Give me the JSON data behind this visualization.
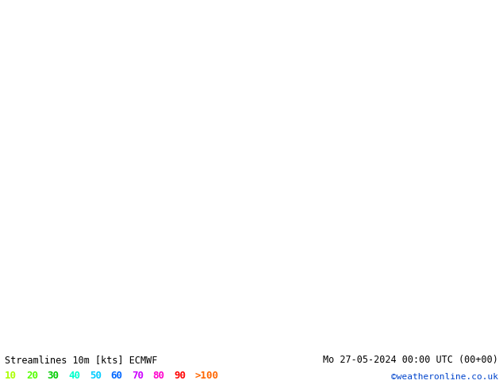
{
  "title_left": "Streamlines 10m [kts] ECMWF",
  "title_right": "Mo 27-05-2024 00:00 UTC (00+00)",
  "credit": "©weatheronline.co.uk",
  "legend_values": [
    "10",
    "20",
    "30",
    "40",
    "50",
    "60",
    "70",
    "80",
    "90",
    ">100"
  ],
  "legend_colors": [
    "#aaff00",
    "#55ff00",
    "#00cc00",
    "#00ffcc",
    "#00ccff",
    "#0066ff",
    "#cc00ff",
    "#ff00cc",
    "#ff0000",
    "#ff6600"
  ],
  "background_color": "#e8e8e8",
  "land_color": "#ccffcc",
  "streamline_color_slow": "#88cc00",
  "streamline_color_medium": "#ffcc00",
  "streamline_color_fast": "#ff8800",
  "fig_width": 6.34,
  "fig_height": 4.9,
  "dpi": 100,
  "map_extent": [
    -25,
    10,
    43,
    63
  ],
  "bottom_bar_color": "#ffffff",
  "text_color": "#000000",
  "title_fontsize": 8.5,
  "legend_fontsize": 9
}
